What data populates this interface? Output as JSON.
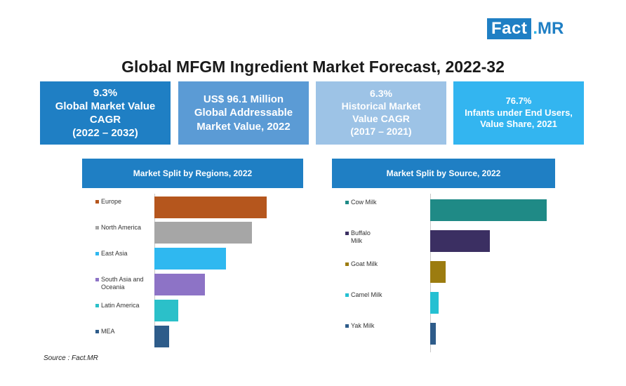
{
  "logo": {
    "fact": "Fact",
    "dot": ".",
    "mr": "MR"
  },
  "title": "Global MFGM Ingredient Market Forecast, 2022-32",
  "stats": [
    {
      "text": "9.3%\nGlobal Market Value\nCAGR\n(2022 – 2032)",
      "color": "#1f7fc4"
    },
    {
      "text": "US$ 96.1 Million\nGlobal Addressable\nMarket Value, 2022",
      "color": "#5b9bd5"
    },
    {
      "text": "6.3%\nHistorical Market\nValue CAGR\n(2017 – 2021)",
      "color": "#9dc3e6"
    },
    {
      "text": "76.7%\nInfants under End Users,\nValue Share, 2021",
      "color": "#33b5f0"
    }
  ],
  "chart_data": [
    {
      "type": "bar",
      "orientation": "horizontal",
      "title": "Market Split by Regions, 2022",
      "categories": [
        "Europe",
        "North America",
        "East Asia",
        "South Asia and\nOceania",
        "Latin America",
        "MEA"
      ],
      "values": [
        100,
        87,
        64,
        45,
        21,
        13
      ],
      "colors": [
        "#b5561d",
        "#a6a6a6",
        "#2fb8f0",
        "#8d73c6",
        "#2bc0c9",
        "#2e5c8a"
      ],
      "value_axis": "unlabeled relative scale, 0-100",
      "xlim": [
        0,
        100
      ]
    },
    {
      "type": "bar",
      "orientation": "horizontal",
      "title": "Market Split by Source, 2022",
      "categories": [
        "Cow Milk",
        "Buffalo\nMilk",
        "Goat Milk",
        "Camel Milk",
        "Yak Milk"
      ],
      "values": [
        100,
        51,
        13,
        7,
        5
      ],
      "colors": [
        "#1f8a86",
        "#3b2f62",
        "#9c7c10",
        "#25c0d2",
        "#2e5c8a"
      ],
      "value_axis": "unlabeled relative scale, 0-100",
      "xlim": [
        0,
        100
      ]
    }
  ],
  "source": "Source : Fact.MR"
}
